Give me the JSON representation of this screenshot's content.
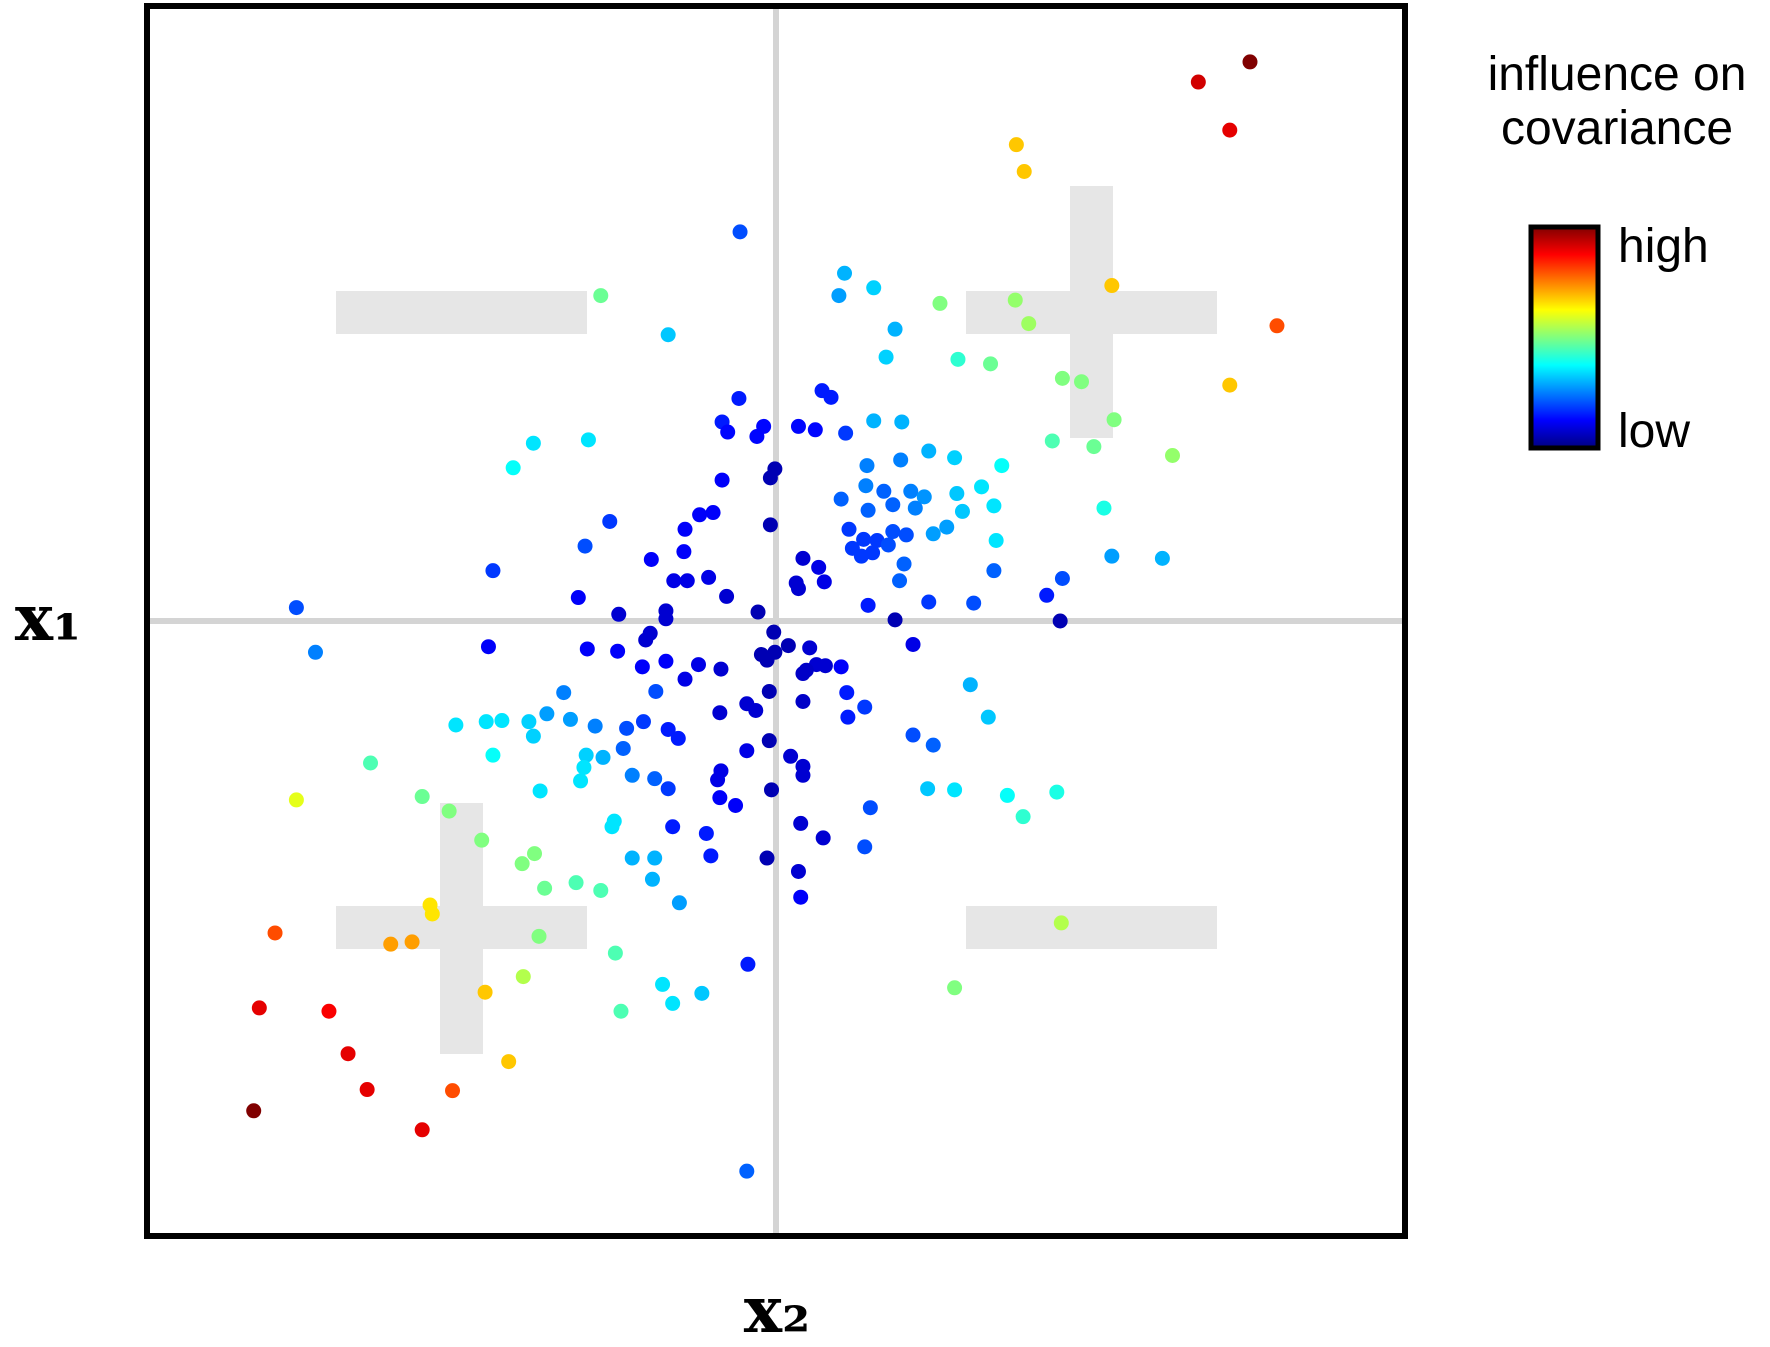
{
  "chart_data": {
    "type": "scatter",
    "x_label": "x₂",
    "y_label": "x₁",
    "legend_title": [
      "influence on",
      "covariance"
    ],
    "colorbar_labels": {
      "high": "high",
      "low": "low"
    },
    "colormap": "jet",
    "clim": [
      0,
      1
    ],
    "xlim": [
      -56,
      56
    ],
    "ylim": [
      -55,
      55
    ],
    "x": [
      42.2,
      37.6,
      40.4,
      21.4,
      22.1,
      29.9,
      44.6,
      40.4,
      -3.2,
      6.1,
      5.6,
      8.7,
      14.6,
      21.3,
      22.5,
      10.6,
      -15.6,
      -9.6,
      9.8,
      16.2,
      19.1,
      25.5,
      27.2,
      30.1,
      24.6,
      28.3,
      35.3,
      -3.3,
      4.1,
      4.9,
      -4.8,
      -4.3,
      -1.7,
      -1.1,
      2.0,
      3.5,
      6.2,
      8.7,
      11.2,
      -21.6,
      -16.7,
      -23.4,
      13.6,
      15.9,
      20.1,
      11.1,
      8.1,
      -0.1,
      -0.5,
      -4.8,
      8.0,
      5.8,
      9.6,
      12.0,
      13.2,
      16.1,
      18.3,
      16.6,
      19.4,
      12.4,
      10.4,
      8.2,
      29.2,
      -5.6,
      -6.8,
      -14.8,
      -8.1,
      -0.5,
      6.5,
      7.8,
      9.0,
      10.4,
      11.6,
      15.2,
      14.0,
      10.0,
      6.8,
      7.6,
      8.6,
      11.4,
      19.6,
      -17.0,
      -25.2,
      -11.1,
      -8.2,
      2.4,
      3.8,
      1.8,
      2.0,
      4.3,
      11.0,
      8.2,
      13.6,
      17.6,
      19.4,
      25.5,
      24.1,
      29.9,
      34.4,
      25.3,
      -42.7,
      -41.0,
      -17.6,
      -14.0,
      -9.1,
      -7.9,
      -6.0,
      -4.4,
      -9.8,
      -9.8,
      -1.6,
      -11.2,
      -11.6,
      -0.2,
      10.6,
      12.2,
      -25.6,
      -16.8,
      -14.1,
      -11.9,
      -9.8,
      -8.1,
      -6.9,
      -4.9,
      -1.3,
      -0.8,
      -0.1,
      1.1,
      3.0,
      3.6,
      4.4,
      2.4,
      2.7,
      5.8,
      -0.6,
      -2.6,
      -1.8,
      -5.0,
      2.4,
      6.3,
      6.4,
      7.9,
      17.3,
      18.9,
      -18.9,
      -20.4,
      -28.5,
      -25.8,
      -24.4,
      -22.0,
      -18.3,
      -10.7,
      -11.8,
      -13.3,
      -16.1,
      -25.2,
      -21.6,
      -9.6,
      -8.7,
      -36.1,
      -16.9,
      -15.4,
      -13.6,
      -0.6,
      -2.6,
      1.3,
      2.4,
      2.4,
      -4.9,
      -5.2,
      -0.4,
      -17.1,
      -17.4,
      -12.8,
      -10.8,
      -9.6,
      12.2,
      14.0,
      -21.0,
      13.5,
      15.9,
      20.6,
      25.0,
      22.0,
      8.4,
      -42.7,
      -31.5,
      -29.1,
      -14.4,
      -14.6,
      -5.0,
      -3.6,
      -9.2,
      -6.2,
      2.2,
      4.2,
      7.9,
      -26.2,
      -21.5,
      -22.6,
      -12.8,
      -10.8,
      -5.8,
      -0.8,
      2.0,
      -11.0,
      -17.8,
      -20.6,
      -15.6,
      -8.6,
      2.2,
      -30.8,
      -30.6,
      -44.6,
      -34.3,
      -32.4,
      -21.1,
      25.4,
      -14.3,
      -2.5,
      -22.5,
      -10.1,
      -6.6,
      -9.2,
      15.9,
      -25.9,
      -46.0,
      -39.8,
      -13.8,
      -38.1,
      -23.8,
      -36.4,
      -28.8,
      -46.5,
      -31.5,
      -2.6
    ],
    "y": [
      50.0,
      48.2,
      43.9,
      42.6,
      40.2,
      30.0,
      26.4,
      21.1,
      34.8,
      31.1,
      29.1,
      29.8,
      28.4,
      28.7,
      26.6,
      26.1,
      29.1,
      25.6,
      23.6,
      23.4,
      23.0,
      21.7,
      21.4,
      18.0,
      16.1,
      15.6,
      14.8,
      19.9,
      20.6,
      20.0,
      17.8,
      16.9,
      16.5,
      17.4,
      17.4,
      17.1,
      16.8,
      17.9,
      17.8,
      15.9,
      16.2,
      13.7,
      15.2,
      14.6,
      13.9,
      14.4,
      13.9,
      13.6,
      12.8,
      12.6,
      12.1,
      10.9,
      11.6,
      11.6,
      11.1,
      11.4,
      12.0,
      9.8,
      10.3,
      10.1,
      10.4,
      9.9,
      10.1,
      9.7,
      9.5,
      8.9,
      8.2,
      8.6,
      8.2,
      7.3,
      7.2,
      8.0,
      7.7,
      8.4,
      7.8,
      6.8,
      6.5,
      5.8,
      6.1,
      5.1,
      7.2,
      6.7,
      4.5,
      5.5,
      6.2,
      5.6,
      4.8,
      3.4,
      2.9,
      3.5,
      3.6,
      1.4,
      1.7,
      1.6,
      4.5,
      3.8,
      2.3,
      5.8,
      5.6,
      0.0,
      1.2,
      -2.8,
      2.1,
      0.6,
      3.6,
      3.6,
      3.9,
      2.2,
      0.9,
      0.2,
      0.8,
      -1.1,
      -1.7,
      -1.0,
      0.1,
      -2.1,
      -2.3,
      -2.5,
      -2.7,
      -4.1,
      -3.6,
      -5.2,
      -3.9,
      -4.3,
      -3.0,
      -3.5,
      -2.8,
      -2.2,
      -2.4,
      -3.9,
      -4.0,
      -4.7,
      -4.4,
      -4.1,
      -6.3,
      -7.4,
      -8.0,
      -8.2,
      -7.2,
      -6.4,
      -8.6,
      -7.7,
      -5.7,
      -8.6,
      -6.4,
      -8.3,
      -9.3,
      -9.0,
      -8.9,
      -9.0,
      -8.8,
      -6.3,
      -9.0,
      -9.6,
      -9.4,
      -12.0,
      -10.3,
      -9.7,
      -10.5,
      -12.7,
      -12.0,
      -12.2,
      -11.4,
      -10.7,
      -11.6,
      -12.1,
      -13.0,
      -13.8,
      -13.4,
      -14.2,
      -15.1,
      -13.1,
      -14.3,
      -13.8,
      -14.1,
      -15.0,
      -10.2,
      -11.1,
      -15.2,
      -15.0,
      -15.1,
      -15.6,
      -15.3,
      -17.5,
      -16.7,
      -16.0,
      -15.7,
      -17.0,
      -17.9,
      -18.4,
      -15.8,
      -16.5,
      -18.4,
      -19.0,
      -18.1,
      -19.4,
      -20.2,
      -19.6,
      -20.8,
      -21.7,
      -21.2,
      -21.2,
      -21.0,
      -21.2,
      -22.4,
      -23.1,
      -23.4,
      -23.9,
      -24.1,
      -25.2,
      -24.7,
      -25.4,
      -26.2,
      -27.9,
      -28.9,
      -28.7,
      -28.2,
      -27.0,
      -29.7,
      -30.7,
      -31.8,
      -32.5,
      -33.3,
      -34.2,
      -32.8,
      -33.2,
      -34.6,
      -34.9,
      -34.9,
      -38.7,
      -39.4,
      -41.9,
      -42.0,
      -43.8,
      -45.5,
      -49.2
    ],
    "influence": [
      1.0,
      0.92,
      0.9,
      0.68,
      0.68,
      0.68,
      0.8,
      0.68,
      0.2,
      0.3,
      0.28,
      0.33,
      0.5,
      0.52,
      0.53,
      0.3,
      0.48,
      0.32,
      0.33,
      0.42,
      0.48,
      0.5,
      0.5,
      0.5,
      0.45,
      0.48,
      0.52,
      0.15,
      0.15,
      0.15,
      0.15,
      0.13,
      0.13,
      0.13,
      0.13,
      0.13,
      0.18,
      0.3,
      0.3,
      0.35,
      0.35,
      0.38,
      0.3,
      0.33,
      0.38,
      0.25,
      0.25,
      0.05,
      0.05,
      0.12,
      0.25,
      0.22,
      0.22,
      0.25,
      0.27,
      0.32,
      0.35,
      0.32,
      0.35,
      0.25,
      0.22,
      0.22,
      0.4,
      0.12,
      0.12,
      0.18,
      0.12,
      0.05,
      0.18,
      0.18,
      0.18,
      0.2,
      0.2,
      0.28,
      0.28,
      0.2,
      0.18,
      0.18,
      0.18,
      0.22,
      0.35,
      0.2,
      0.18,
      0.12,
      0.12,
      0.08,
      0.1,
      0.08,
      0.08,
      0.1,
      0.22,
      0.15,
      0.18,
      0.2,
      0.22,
      0.2,
      0.15,
      0.28,
      0.3,
      0.05,
      0.2,
      0.25,
      0.12,
      0.08,
      0.1,
      0.1,
      0.1,
      0.08,
      0.08,
      0.08,
      0.05,
      0.08,
      0.08,
      0.05,
      0.05,
      0.1,
      0.12,
      0.12,
      0.12,
      0.12,
      0.12,
      0.1,
      0.1,
      0.08,
      0.05,
      0.05,
      0.05,
      0.05,
      0.08,
      0.08,
      0.08,
      0.07,
      0.07,
      0.12,
      0.05,
      0.08,
      0.08,
      0.08,
      0.07,
      0.15,
      0.15,
      0.18,
      0.3,
      0.32,
      0.25,
      0.28,
      0.35,
      0.35,
      0.35,
      0.33,
      0.28,
      0.2,
      0.18,
      0.2,
      0.25,
      0.38,
      0.33,
      0.15,
      0.15,
      0.45,
      0.33,
      0.3,
      0.22,
      0.05,
      0.1,
      0.08,
      0.08,
      0.08,
      0.1,
      0.1,
      0.05,
      0.35,
      0.35,
      0.25,
      0.22,
      0.18,
      0.2,
      0.22,
      0.35,
      0.32,
      0.35,
      0.38,
      0.4,
      0.42,
      0.2,
      0.6,
      0.48,
      0.5,
      0.35,
      0.35,
      0.12,
      0.12,
      0.15,
      0.15,
      0.08,
      0.08,
      0.2,
      0.5,
      0.5,
      0.5,
      0.3,
      0.3,
      0.15,
      0.05,
      0.08,
      0.3,
      0.45,
      0.48,
      0.45,
      0.28,
      0.12,
      0.65,
      0.65,
      0.8,
      0.72,
      0.72,
      0.5,
      0.55,
      0.45,
      0.15,
      0.55,
      0.35,
      0.32,
      0.35,
      0.5,
      0.68,
      0.9,
      0.88,
      0.45,
      0.9,
      0.68,
      0.9,
      0.8,
      1.0,
      0.9,
      0.22
    ]
  }
}
